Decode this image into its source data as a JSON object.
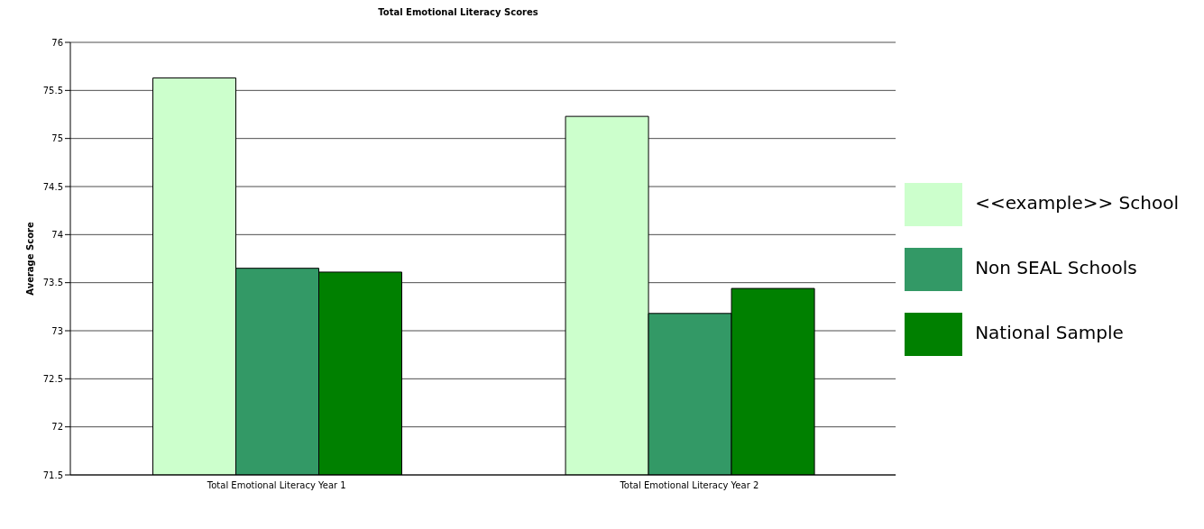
{
  "chart_data": {
    "type": "bar",
    "title": "Total Emotional Literacy Scores",
    "ylabel": "Average Score",
    "categories": [
      "Total Emotional Literacy Year 1",
      "Total Emotional Literacy Year 2"
    ],
    "series": [
      {
        "name": "<<example>>  School",
        "color": "#ccffcc",
        "values": [
          75.63,
          75.23
        ]
      },
      {
        "name": "Non SEAL Schools",
        "color": "#339966",
        "values": [
          73.65,
          73.18
        ]
      },
      {
        "name": "National Sample",
        "color": "#008000",
        "values": [
          73.61,
          73.44
        ]
      }
    ],
    "ylim": [
      71.5,
      76
    ],
    "yticks": [
      71.5,
      72,
      72.5,
      73,
      73.5,
      74,
      74.5,
      75,
      75.5,
      76
    ],
    "grid": "y",
    "legend": "right"
  }
}
